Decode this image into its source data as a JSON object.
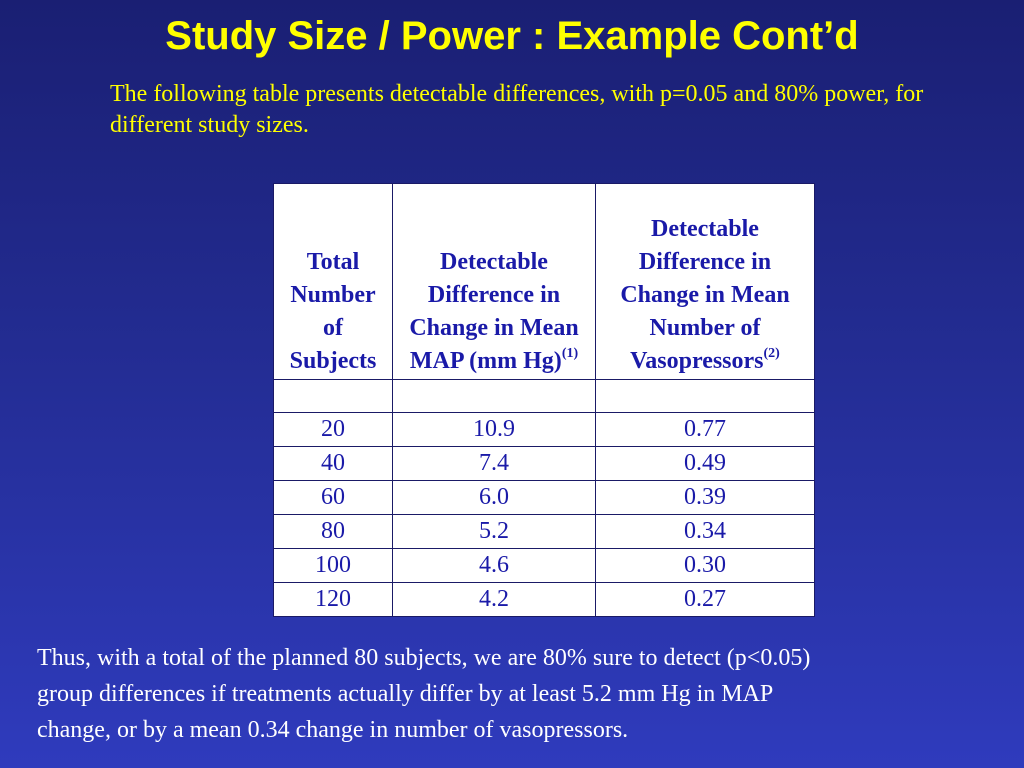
{
  "slide": {
    "title": "Study Size / Power : Example Cont’d",
    "intro": "The following table presents detectable differences, with p=0.05 and 80% power, for different study sizes.",
    "conclusion_line1": "Thus, with a total of the planned 80 subjects, we are 80% sure to detect (p<0.05)",
    "conclusion_line2": "group differences if treatments actually differ by at least 5.2 mm Hg in MAP",
    "conclusion_line3": "change, or by a mean 0.34 change in number of vasopressors."
  },
  "table": {
    "headers": {
      "col1": "Total Number of Subjects",
      "col2": "Detectable Difference in Change in Mean MAP (mm Hg)",
      "col2_note": "(1)",
      "col3": "Detectable Difference in Change in Mean Number of Vasopressors",
      "col3_note": "(2)"
    },
    "rows": [
      {
        "subjects": "20",
        "map": "10.9",
        "vaso": "0.77"
      },
      {
        "subjects": "40",
        "map": "7.4",
        "vaso": "0.49"
      },
      {
        "subjects": "60",
        "map": "6.0",
        "vaso": "0.39"
      },
      {
        "subjects": "80",
        "map": "5.2",
        "vaso": "0.34"
      },
      {
        "subjects": "100",
        "map": "4.6",
        "vaso": "0.30"
      },
      {
        "subjects": "120",
        "map": "4.2",
        "vaso": "0.27"
      }
    ]
  },
  "colors": {
    "title": "#ffff00",
    "intro_text": "#ffff00",
    "table_text": "#1a1aa8",
    "table_background": "#ffffff",
    "body_text": "#ffffff"
  }
}
